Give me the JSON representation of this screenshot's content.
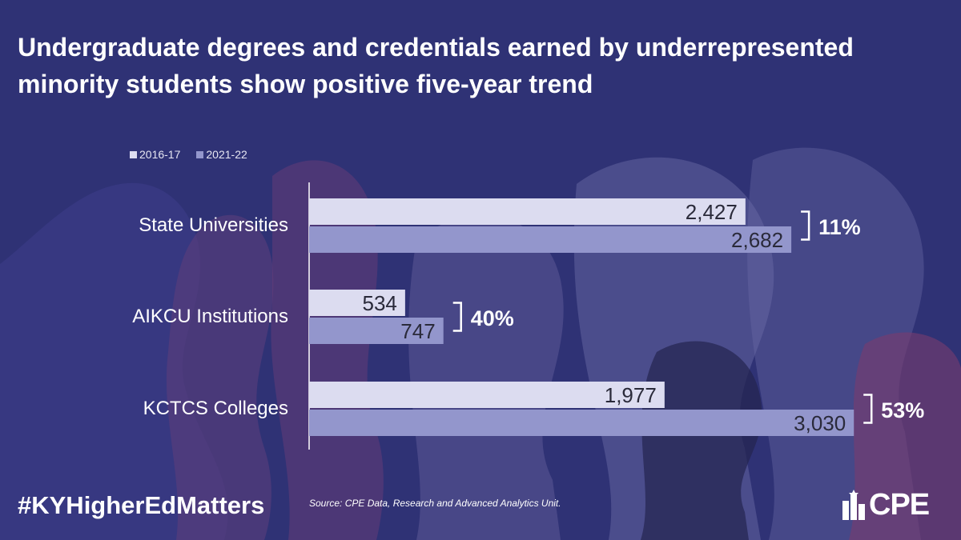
{
  "title": "Undergraduate degrees and credentials earned by underrepresented minority students show positive five-year trend",
  "hashtag": "#KYHigherEdMatters",
  "source": "Source: CPE Data, Research and Advanced Analytics Unit.",
  "logo": {
    "text": "CPE",
    "icon": "kentucky-state-icon"
  },
  "colors": {
    "background": "#2f3275",
    "series_2016": "#dcdcf0",
    "series_2021": "#9396cc",
    "text_dark": "#2a2a3a",
    "text_light": "#ffffff"
  },
  "chart_data": {
    "type": "bar",
    "orientation": "horizontal",
    "categories": [
      "State Universities",
      "AIKCU Institutions",
      "KCTCS Colleges"
    ],
    "series": [
      {
        "name": "2016-17",
        "values": [
          2427,
          534,
          1977
        ],
        "labels": [
          "2,427",
          "534",
          "1,977"
        ]
      },
      {
        "name": "2021-22",
        "values": [
          2682,
          747,
          3030
        ],
        "labels": [
          "2,682",
          "747",
          "3,030"
        ]
      }
    ],
    "changes": [
      "11%",
      "40%",
      "53%"
    ],
    "xlim": [
      0,
      3200
    ],
    "legend": "top-left",
    "grid": false
  }
}
